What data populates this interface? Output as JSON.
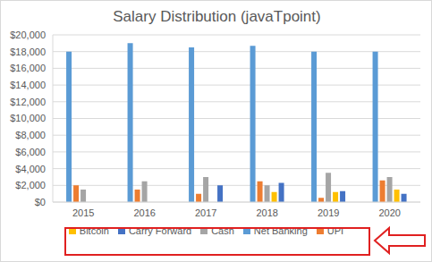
{
  "chart_data": {
    "type": "bar",
    "title": "Salary Distribution (javaTpoint)",
    "categories": [
      "2015",
      "2016",
      "2017",
      "2018",
      "2019",
      "2020"
    ],
    "series": [
      {
        "name": "Net Banking",
        "color": "#5b9bd5",
        "values": [
          18000,
          19000,
          18500,
          18700,
          18000,
          18000
        ]
      },
      {
        "name": "UPI",
        "color": "#ed7d31",
        "values": [
          2000,
          1500,
          1000,
          2500,
          500,
          2600
        ]
      },
      {
        "name": "Cash",
        "color": "#a5a5a5",
        "values": [
          1500,
          2500,
          3000,
          2000,
          3500,
          3000
        ]
      },
      {
        "name": "Bitcoin",
        "color": "#ffc000",
        "values": [
          null,
          null,
          null,
          1200,
          1200,
          1500
        ]
      },
      {
        "name": "Carry Forward",
        "color": "#4472c4",
        "values": [
          null,
          null,
          2000,
          2300,
          1300,
          1000
        ]
      }
    ],
    "ylim": [
      0,
      20000
    ],
    "yticks": [
      {
        "value": 0,
        "label": "$0"
      },
      {
        "value": 2000,
        "label": "$2,000"
      },
      {
        "value": 4000,
        "label": "$4,000"
      },
      {
        "value": 6000,
        "label": "$6,000"
      },
      {
        "value": 8000,
        "label": "$8,000"
      },
      {
        "value": 10000,
        "label": "$10,000"
      },
      {
        "value": 12000,
        "label": "$12,000"
      },
      {
        "value": 14000,
        "label": "$14,000"
      },
      {
        "value": 16000,
        "label": "$16,000"
      },
      {
        "value": 18000,
        "label": "$18,000"
      },
      {
        "value": 20000,
        "label": "$20,000"
      }
    ],
    "grid": true,
    "legend": "bottom"
  }
}
